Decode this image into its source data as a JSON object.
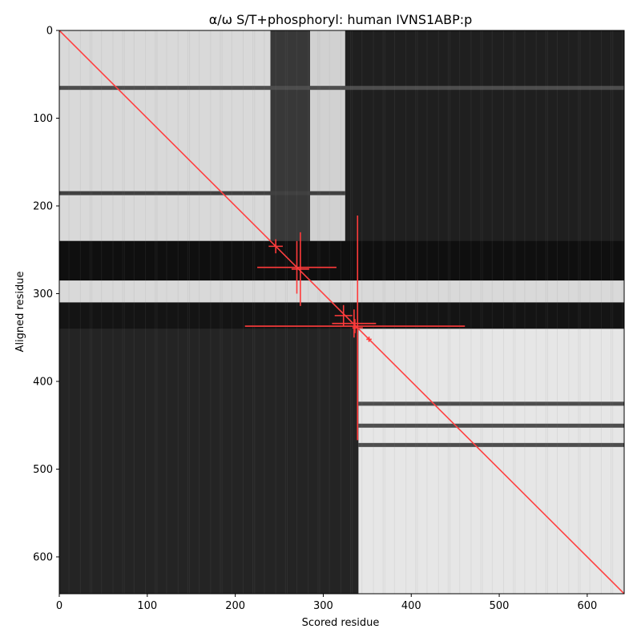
{
  "chart_data": {
    "type": "heatmap",
    "title": "α/ω S/T+phosphoryl: human IVNS1ABP:p",
    "xlabel": "Scored residue",
    "ylabel": "Aligned residue",
    "xlim": [
      0,
      642
    ],
    "ylim": [
      642,
      0
    ],
    "xticks": [
      0,
      100,
      200,
      300,
      400,
      500,
      600
    ],
    "yticks": [
      0,
      100,
      200,
      300,
      400,
      500,
      600
    ],
    "grid": false,
    "colormap": "grayscale (white = high, black = low)",
    "blocks": [
      {
        "x": [
          0,
          240
        ],
        "y": [
          0,
          240
        ],
        "level": 0.85
      },
      {
        "x": [
          240,
          285
        ],
        "y": [
          0,
          640
        ],
        "level": 0.22
      },
      {
        "x": [
          285,
          325
        ],
        "y": [
          0,
          240
        ],
        "level": 0.82
      },
      {
        "x": [
          325,
          642
        ],
        "y": [
          0,
          340
        ],
        "level": 0.12
      },
      {
        "x": [
          0,
          642
        ],
        "y": [
          240,
          285
        ],
        "level": 0.06
      },
      {
        "x": [
          0,
          642
        ],
        "y": [
          285,
          310
        ],
        "level": 0.85
      },
      {
        "x": [
          0,
          642
        ],
        "y": [
          310,
          340
        ],
        "level": 0.08
      },
      {
        "x": [
          0,
          340
        ],
        "y": [
          340,
          642
        ],
        "level": 0.14
      },
      {
        "x": [
          340,
          642
        ],
        "y": [
          340,
          642
        ],
        "level": 0.9
      }
    ],
    "horizontal_bands": [
      {
        "y": 65,
        "x": [
          0,
          642
        ],
        "level": 0.3
      },
      {
        "y": 185,
        "x": [
          0,
          325
        ],
        "level": 0.25
      },
      {
        "y": 425,
        "x": [
          340,
          642
        ],
        "level": 0.3
      },
      {
        "y": 450,
        "x": [
          340,
          642
        ],
        "level": 0.3
      },
      {
        "y": 472,
        "x": [
          340,
          642
        ],
        "level": 0.3
      }
    ],
    "diagonal": {
      "from": [
        0,
        0
      ],
      "to": [
        642,
        642
      ],
      "color": "#ff4040"
    },
    "markers": [
      {
        "x": 246,
        "y": 246,
        "xerr": 8,
        "yerr": 8
      },
      {
        "x": 270,
        "y": 270,
        "xerr": 45,
        "yerr": 30
      },
      {
        "x": 274,
        "y": 272,
        "xerr": 10,
        "yerr": 42
      },
      {
        "x": 323,
        "y": 325,
        "xerr": 10,
        "yerr": 12
      },
      {
        "x": 336,
        "y": 337,
        "xerr": 125,
        "yerr": 8
      },
      {
        "x": 339,
        "y": 339,
        "xerr": 6,
        "yerr": 128
      },
      {
        "x": 335,
        "y": 334,
        "xerr": 25,
        "yerr": 16
      },
      {
        "x": 352,
        "y": 352,
        "xerr": 3,
        "yerr": 3
      }
    ],
    "marker_color": "#ff3b3b"
  }
}
